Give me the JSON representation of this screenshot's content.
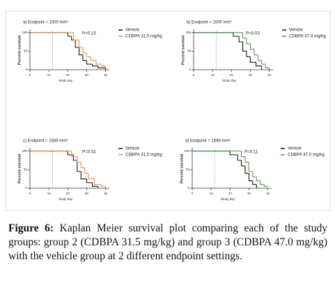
{
  "chart_data": [
    {
      "type": "step",
      "title": "a) Endpoint = 1000 mm³",
      "y_label": "Percent survival",
      "x_label": "Study day",
      "annotation": "P=0.15",
      "xlim": [
        0,
        42
      ],
      "ylim": [
        0,
        105
      ],
      "xticks": [
        0,
        10,
        20,
        30,
        40
      ],
      "yticks": [
        0,
        50,
        100
      ],
      "dotted_line_x": 12,
      "legend": "right",
      "series": [
        {
          "name": "Vehicle",
          "color": "#111111",
          "x": [
            0,
            20,
            22,
            24,
            26,
            28,
            30,
            33,
            36,
            40
          ],
          "values": [
            100,
            90,
            80,
            60,
            40,
            25,
            15,
            10,
            5,
            0
          ]
        },
        {
          "name": "CDBPA 31,5 mg/kg",
          "color": "#f0913f",
          "x": [
            0,
            23,
            26,
            28,
            30,
            32,
            35,
            38,
            40
          ],
          "values": [
            100,
            80,
            60,
            45,
            35,
            25,
            15,
            10,
            5
          ]
        }
      ]
    },
    {
      "type": "step",
      "title": "b) Endpoint = 1000 mm³",
      "y_label": "Percent survival",
      "x_label": "Study day",
      "annotation": "P=0.03",
      "xlim": [
        0,
        42
      ],
      "ylim": [
        0,
        105
      ],
      "xticks": [
        0,
        10,
        20,
        30,
        40
      ],
      "yticks": [
        0,
        50,
        100
      ],
      "dotted_line_x": 12,
      "legend": "right",
      "series": [
        {
          "name": "Vehicle",
          "color": "#111111",
          "x": [
            0,
            21,
            24,
            26,
            28,
            30,
            33,
            36
          ],
          "values": [
            100,
            90,
            75,
            50,
            35,
            20,
            10,
            0
          ]
        },
        {
          "name": "CDBPA 47,0 mg/kg",
          "color": "#4f9a4a",
          "x": [
            0,
            26,
            28,
            30,
            32,
            34,
            36,
            38,
            40
          ],
          "values": [
            100,
            85,
            70,
            55,
            40,
            25,
            15,
            5,
            0
          ]
        }
      ]
    },
    {
      "type": "step",
      "title": "c) Endpoint = 1688 mm³",
      "y_label": "Percent survival",
      "x_label": "Study day",
      "annotation": "P=0.41",
      "xlim": [
        0,
        42
      ],
      "ylim": [
        0,
        105
      ],
      "xticks": [
        0,
        10,
        20,
        30,
        40
      ],
      "yticks": [
        0,
        50,
        100
      ],
      "dotted_line_x": 12,
      "legend": "right",
      "series": [
        {
          "name": "Vehicle",
          "color": "#111111",
          "x": [
            0,
            20,
            23,
            25,
            27,
            30,
            33,
            36
          ],
          "values": [
            100,
            90,
            75,
            45,
            25,
            15,
            5,
            0
          ]
        },
        {
          "name": "CDBPA 31,5 mg/kg",
          "color": "#f0913f",
          "x": [
            0,
            22,
            25,
            27,
            29,
            31,
            34,
            38,
            40
          ],
          "values": [
            100,
            85,
            70,
            55,
            40,
            25,
            10,
            5,
            0
          ]
        }
      ]
    },
    {
      "type": "step",
      "title": "d) Endpoint = 1688 mm³",
      "y_label": "Percent survival",
      "x_label": "Study day",
      "annotation": "P=0.11",
      "xlim": [
        0,
        42
      ],
      "ylim": [
        0,
        105
      ],
      "xticks": [
        0,
        10,
        20,
        30,
        40
      ],
      "yticks": [
        0,
        50,
        100
      ],
      "dotted_line_x": 12,
      "legend": "right",
      "series": [
        {
          "name": "Vehicle",
          "color": "#111111",
          "x": [
            0,
            20,
            24,
            26,
            28,
            30,
            32,
            34
          ],
          "values": [
            100,
            90,
            75,
            60,
            40,
            20,
            10,
            0
          ]
        },
        {
          "name": "CDBPA 47,0 mg/kg",
          "color": "#4f9a4a",
          "x": [
            0,
            26,
            28,
            30,
            32,
            34,
            36,
            38,
            40
          ],
          "values": [
            100,
            85,
            70,
            45,
            30,
            20,
            10,
            5,
            5
          ]
        }
      ]
    }
  ],
  "caption": {
    "label": "Figure 6:",
    "text": "Kaplan Meier survival plot comparing each of the study groups: group 2 (CDBPA 31.5 mg/kg) and group 3 (CDBPA 47.0 mg/kg) with the vehicle group at 2 different endpoint settings."
  }
}
